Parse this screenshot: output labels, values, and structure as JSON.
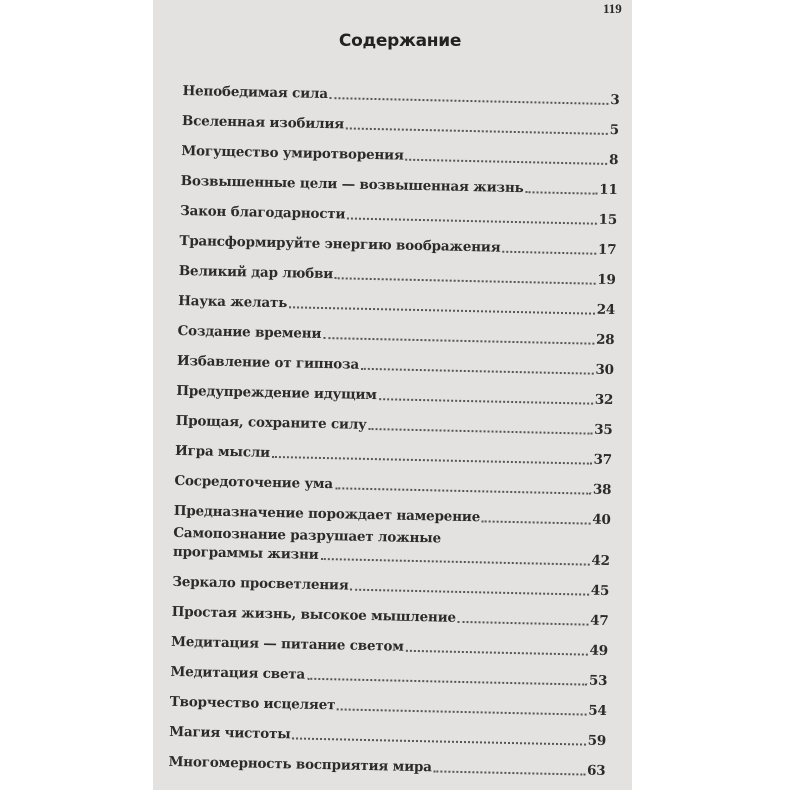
{
  "page_number": "119",
  "title": "Содержание",
  "entries": [
    {
      "label": "Непобедимая сила",
      "page": "3"
    },
    {
      "label": "Вселенная изобилия",
      "page": "5"
    },
    {
      "label": "Могущество умиротворения",
      "page": "8"
    },
    {
      "label": "Возвышенные цели — возвышенная жизнь",
      "page": "11"
    },
    {
      "label": "Закон благодарности",
      "page": "15"
    },
    {
      "label": "Трансформируйте энергию воображения",
      "page": "17"
    },
    {
      "label": "Великий дар любви",
      "page": "19"
    },
    {
      "label": "Наука желать",
      "page": "24"
    },
    {
      "label": "Создание времени",
      "page": "28"
    },
    {
      "label": "Избавление от гипноза",
      "page": "30"
    },
    {
      "label": "Предупреждение идущим",
      "page": "32"
    },
    {
      "label": "Прощая, сохраните силу",
      "page": "35"
    },
    {
      "label": "Игра мысли",
      "page": "37"
    },
    {
      "label": "Сосредоточение ума",
      "page": "38"
    },
    {
      "label": "Предназначение порождает намерение",
      "page": "40"
    },
    {
      "label": "Самопознание разрушает ложные",
      "label_line2": "программы жизни",
      "page": "42"
    },
    {
      "label": "Зеркало просветления",
      "page": "45"
    },
    {
      "label": "Простая жизнь, высокое мышление",
      "page": "47"
    },
    {
      "label": "Медитация — питание светом",
      "page": "49"
    },
    {
      "label": "Медитация света",
      "page": "53"
    },
    {
      "label": "Творчество исцеляет",
      "page": "54"
    },
    {
      "label": "Магия чистоты",
      "page": "59"
    },
    {
      "label": "Многомерность восприятия мира",
      "page": "63"
    }
  ]
}
